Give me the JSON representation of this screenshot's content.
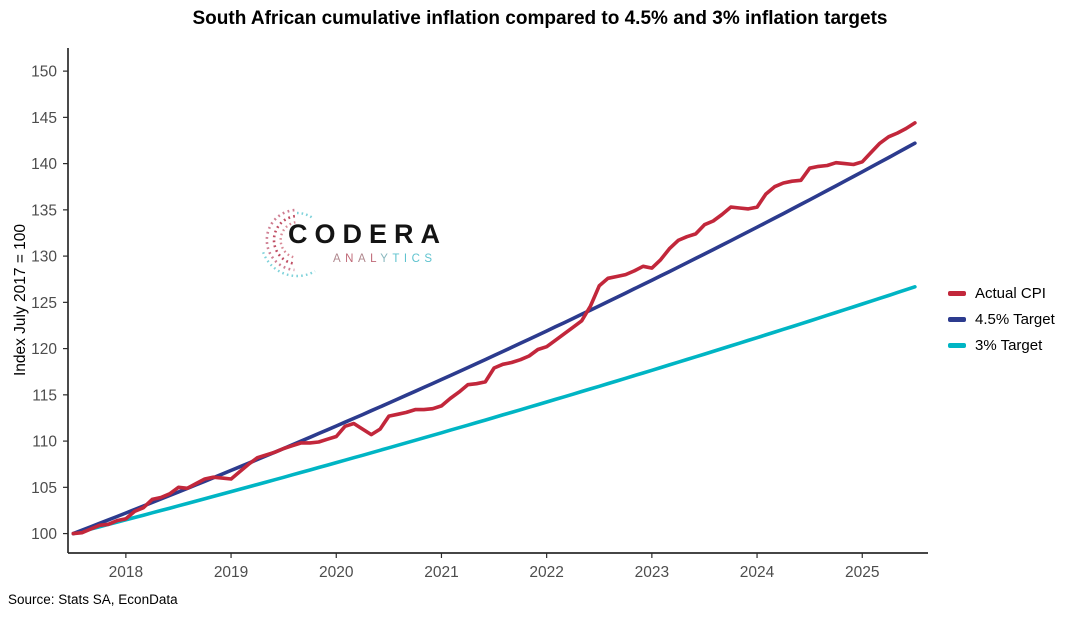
{
  "chart_data": {
    "type": "line",
    "title": "South African cumulative inflation compared to 4.5% and 3% inflation targets",
    "xlabel": "",
    "ylabel": "Index July 2017 = 100",
    "source_note": "Source: Stats SA, EconData",
    "x_start": "2017-07",
    "x_freq": "monthly",
    "n_months": 97,
    "grid": false,
    "legend_position": "right",
    "xtick_labels": [
      "2018",
      "2019",
      "2020",
      "2021",
      "2022",
      "2023",
      "2024",
      "2025"
    ],
    "xtick_month_index": [
      6,
      18,
      30,
      42,
      54,
      66,
      78,
      90
    ],
    "yticks": [
      100,
      105,
      110,
      115,
      120,
      125,
      130,
      135,
      140,
      145,
      150
    ],
    "ylim": [
      97.9,
      152.5
    ],
    "xlim_months": [
      -0.6,
      97.5
    ],
    "axis_color": "#2b2b2b",
    "tick_label_color": "#4d4d4d",
    "series": [
      {
        "name": "Actual CPI",
        "color": "#C2273B",
        "kind": "values",
        "values": [
          100.0,
          100.1,
          100.5,
          100.9,
          101.0,
          101.4,
          101.6,
          102.4,
          102.8,
          103.7,
          103.9,
          104.3,
          105.0,
          104.9,
          105.4,
          105.9,
          106.1,
          106.0,
          105.9,
          106.7,
          107.5,
          108.2,
          108.5,
          108.8,
          109.2,
          109.5,
          109.8,
          109.8,
          109.9,
          110.2,
          110.5,
          111.6,
          111.9,
          111.3,
          110.7,
          111.3,
          112.7,
          112.9,
          113.1,
          113.4,
          113.4,
          113.5,
          113.8,
          114.6,
          115.3,
          116.1,
          116.2,
          116.4,
          117.9,
          118.3,
          118.5,
          118.8,
          119.2,
          119.9,
          120.2,
          120.9,
          121.6,
          122.3,
          123.0,
          124.6,
          126.8,
          127.6,
          127.8,
          128.0,
          128.4,
          128.9,
          128.7,
          129.6,
          130.8,
          131.7,
          132.1,
          132.4,
          133.4,
          133.8,
          134.5,
          135.3,
          135.2,
          135.1,
          135.3,
          136.7,
          137.5,
          137.9,
          138.1,
          138.2,
          139.5,
          139.7,
          139.8,
          140.1,
          140.0,
          139.9,
          140.2,
          141.2,
          142.2,
          142.9,
          143.3,
          143.8,
          144.4
        ]
      },
      {
        "name": "4.5% Target",
        "color": "#2C3B8E",
        "kind": "compound",
        "annual_rate_pct": 4.5,
        "start_value": 100,
        "end_value": 142.2
      },
      {
        "name": "3% Target",
        "color": "#00B5C4",
        "kind": "compound",
        "annual_rate_pct": 3.0,
        "start_value": 100,
        "end_value": 126.7
      }
    ]
  },
  "logo": {
    "wordmark": "CODERA",
    "subtext": "ANALYTICS",
    "subtext_letter_colors": [
      "#b0888e",
      "#c06a78",
      "#b0888e",
      "#c06a78",
      "#88b7be",
      "#5fc3cf",
      "#5fc3cf",
      "#5fc3cf",
      "#5fc3cf"
    ],
    "arc_colors": [
      "#cf7f93",
      "#bf4d63",
      "#d98a97",
      "#7fd2da",
      "#7fd2da"
    ]
  }
}
